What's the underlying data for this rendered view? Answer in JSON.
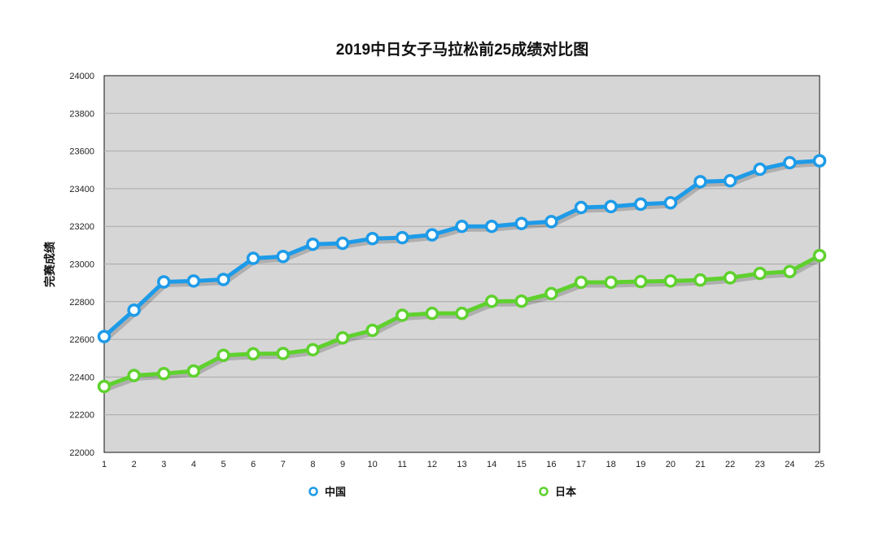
{
  "chart_data": {
    "type": "line",
    "title": "2019中日女子马拉松前25成绩对比图",
    "xlabel": "",
    "ylabel": "完赛成绩",
    "ylim": [
      22000,
      24000
    ],
    "yticks": [
      22000,
      22200,
      22400,
      22600,
      22800,
      23000,
      23200,
      23400,
      23600,
      23800,
      24000
    ],
    "x": [
      1,
      2,
      3,
      4,
      5,
      6,
      7,
      8,
      9,
      10,
      11,
      12,
      13,
      14,
      15,
      16,
      17,
      18,
      19,
      20,
      21,
      22,
      23,
      24,
      25
    ],
    "grid": true,
    "legend_position": "bottom",
    "series": [
      {
        "name": "中国",
        "color": "#1e9be8",
        "values": [
          22615,
          22755,
          22905,
          22910,
          22918,
          23030,
          23040,
          23105,
          23110,
          23135,
          23140,
          23155,
          23200,
          23200,
          23215,
          23225,
          23300,
          23305,
          23318,
          23325,
          23437,
          23442,
          23503,
          23538,
          23548
        ]
      },
      {
        "name": "日本",
        "color": "#5fd12e",
        "values": [
          22350,
          22408,
          22418,
          22432,
          22515,
          22523,
          22525,
          22545,
          22608,
          22648,
          22728,
          22738,
          22738,
          22802,
          22803,
          22843,
          22903,
          22903,
          22907,
          22910,
          22915,
          22927,
          22950,
          22960,
          23045
        ]
      }
    ]
  }
}
